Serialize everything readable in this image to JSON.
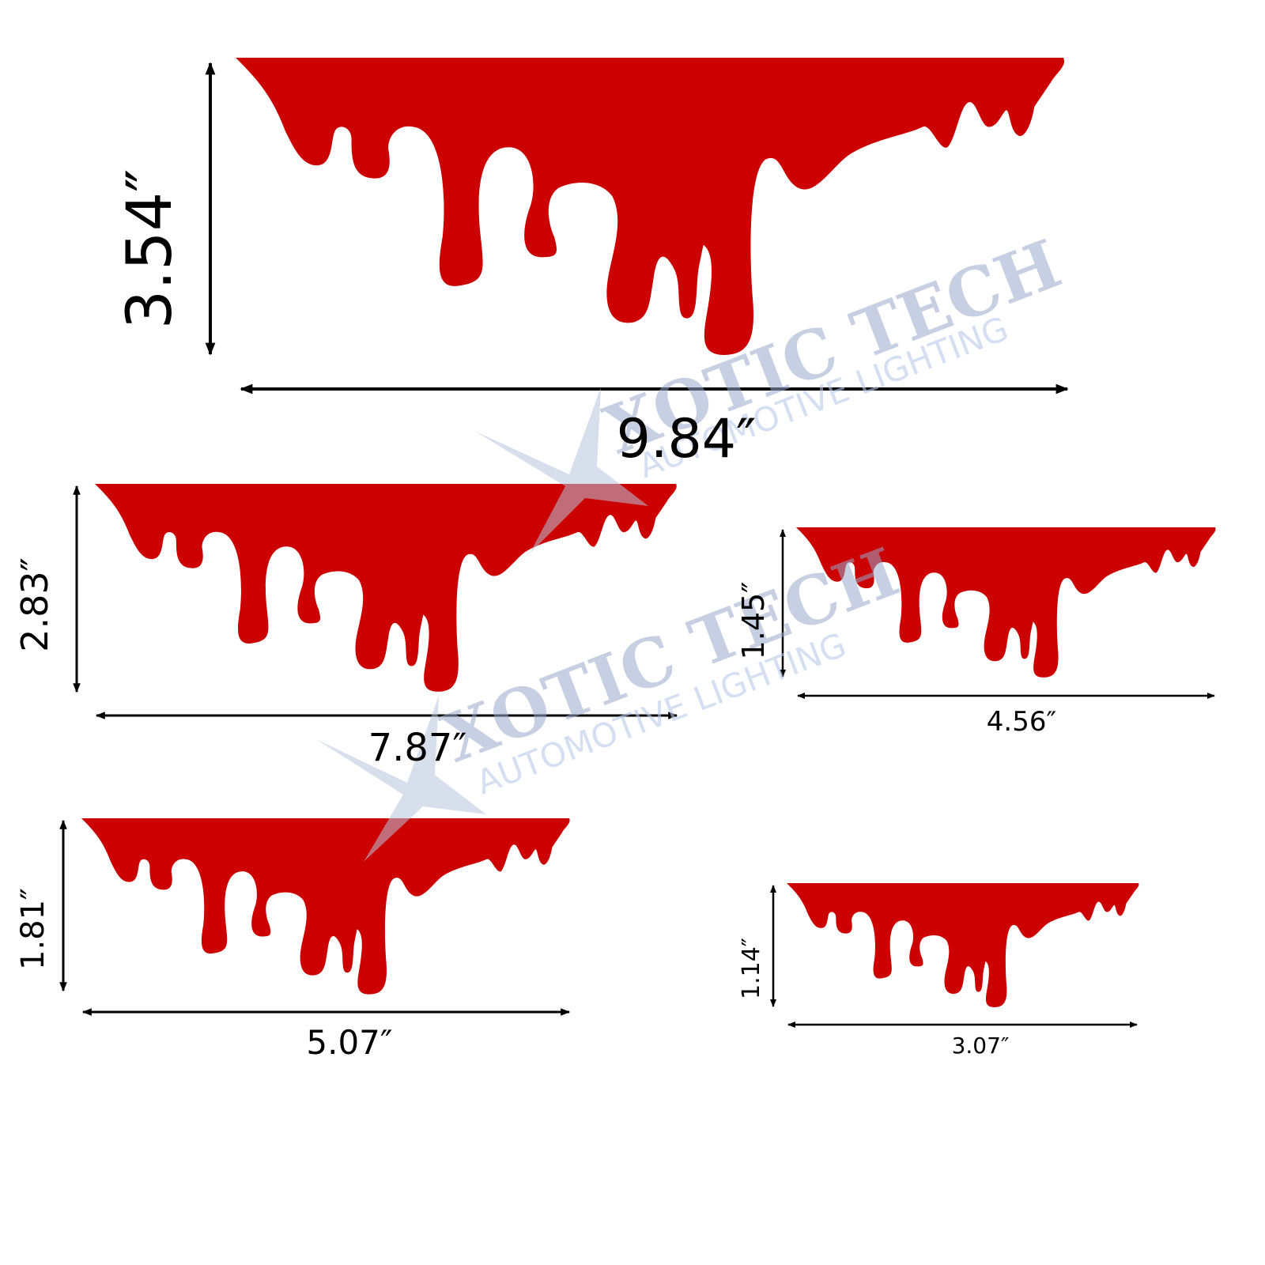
{
  "decals": [
    {
      "height": "3.54″",
      "width": "9.84″"
    },
    {
      "height": "2.83″",
      "width": "7.87″"
    },
    {
      "height": "1.45″",
      "width": "4.56″"
    },
    {
      "height": "1.81″",
      "width": "5.07″"
    },
    {
      "height": "1.14″",
      "width": "3.07″"
    }
  ],
  "watermark": {
    "brand": "XOTIC TECH",
    "tagline": "AUTOMOTIVE LIGHTING"
  }
}
